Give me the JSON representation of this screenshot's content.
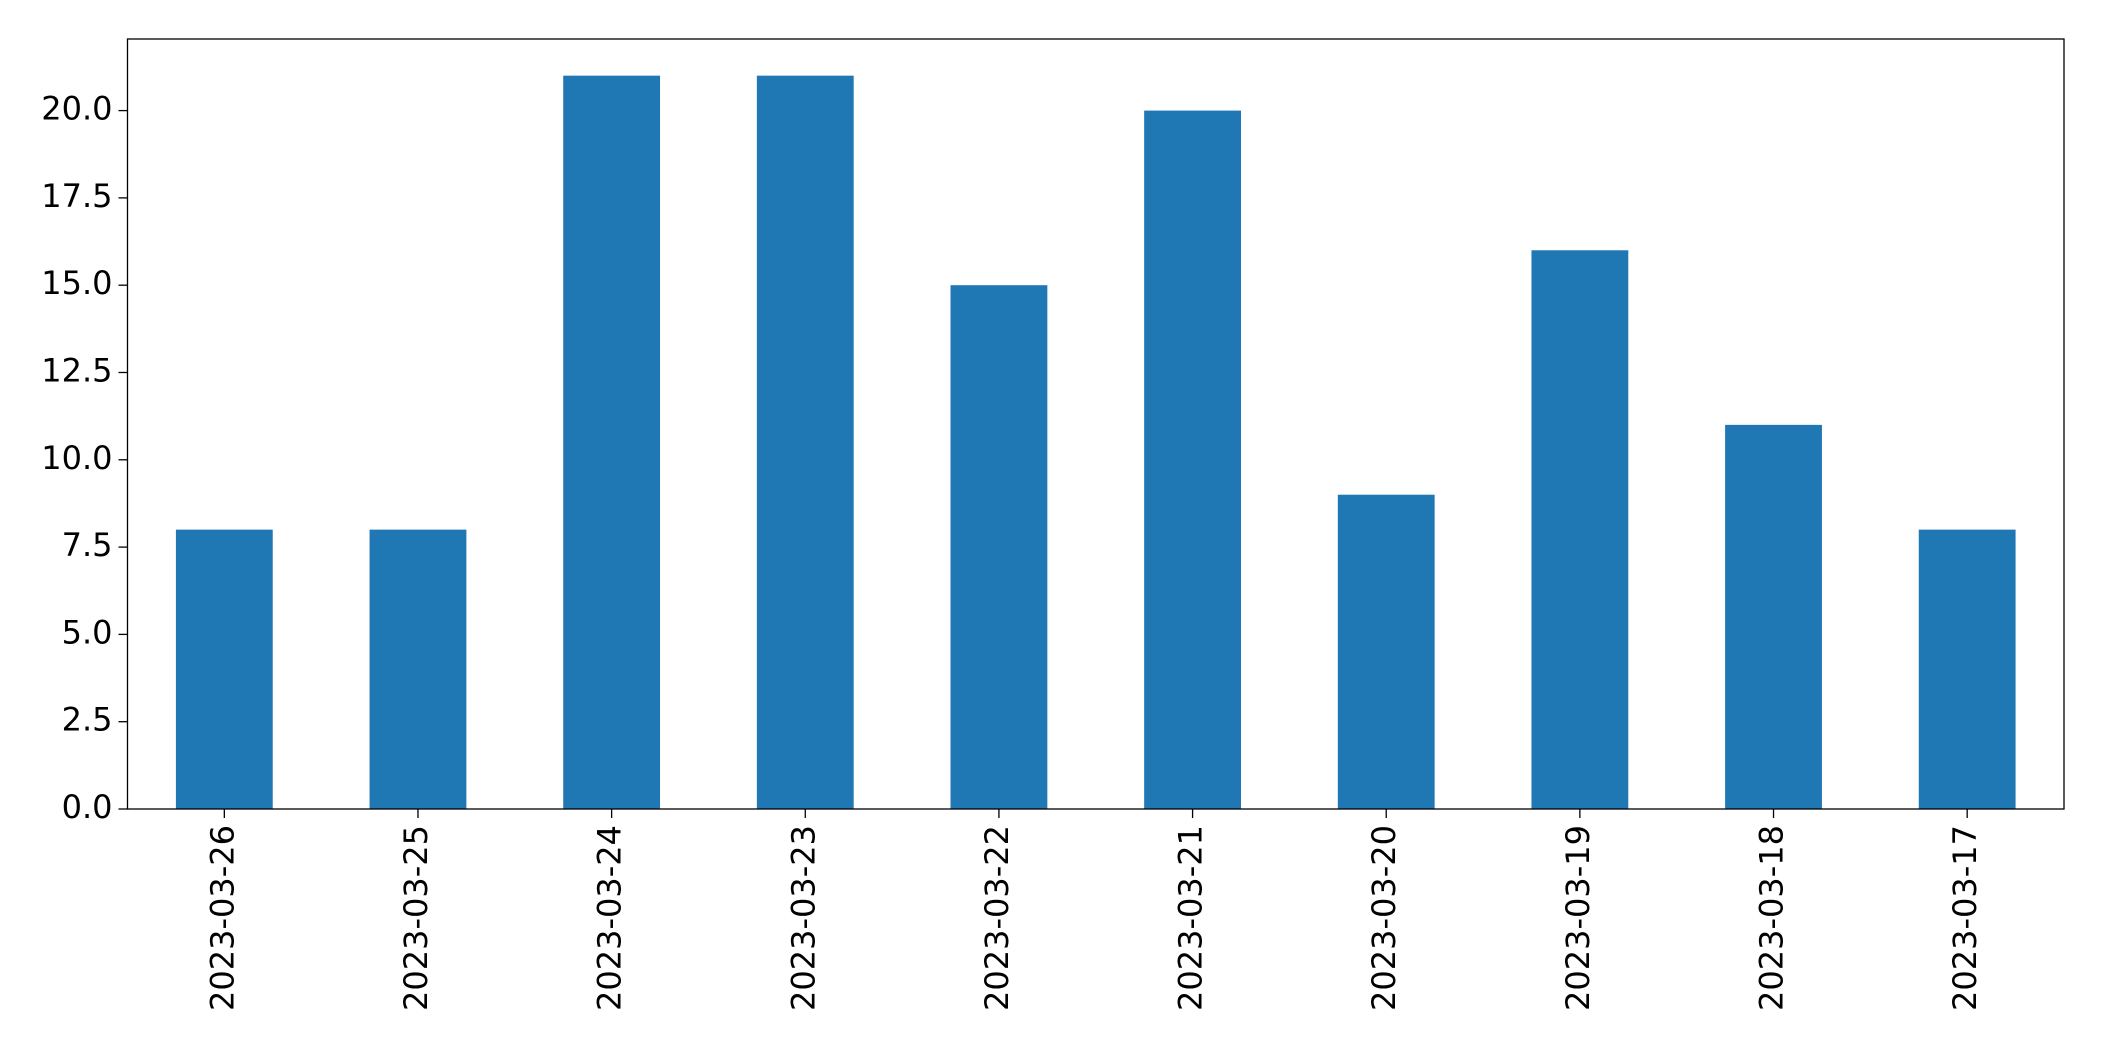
{
  "chart_data": {
    "type": "bar",
    "categories": [
      "2023-03-26",
      "2023-03-25",
      "2023-03-24",
      "2023-03-23",
      "2023-03-22",
      "2023-03-21",
      "2023-03-20",
      "2023-03-19",
      "2023-03-18",
      "2023-03-17"
    ],
    "values": [
      8,
      8,
      21,
      21,
      15,
      20,
      9,
      16,
      11,
      8
    ],
    "color": "#1f77b4",
    "ylim": [
      0,
      22.05
    ],
    "yticks": [
      {
        "value": 0,
        "label": "0.0"
      },
      {
        "value": 2.5,
        "label": "2.5"
      },
      {
        "value": 5,
        "label": "5.0"
      },
      {
        "value": 7.5,
        "label": "7.5"
      },
      {
        "value": 10,
        "label": "10.0"
      },
      {
        "value": 12.5,
        "label": "12.5"
      },
      {
        "value": 15,
        "label": "15.0"
      },
      {
        "value": 17.5,
        "label": "17.5"
      },
      {
        "value": 20,
        "label": "20.0"
      }
    ],
    "grid": false
  }
}
